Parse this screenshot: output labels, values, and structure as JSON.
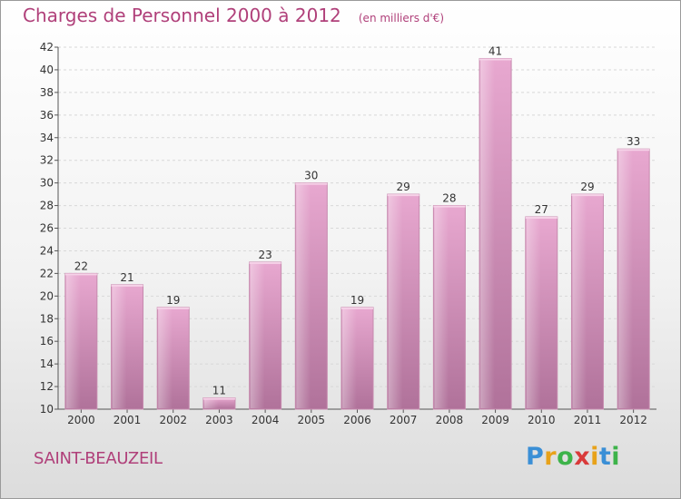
{
  "header": {
    "title": "Charges de Personnel 2000 à 2012",
    "subtitle": "(en milliers d'€)"
  },
  "footer": {
    "commune": "SAINT-BEAUZEIL",
    "brand": [
      "P",
      "r",
      "o",
      "x",
      "i",
      "t",
      "i"
    ],
    "brand_colors": [
      "#3a8fd6",
      "#e8a21a",
      "#3db34a",
      "#d93a3a",
      "#e8a21a",
      "#3a8fd6",
      "#3db34a"
    ]
  },
  "colors": {
    "bar_light": "#e8a8d0",
    "bar_dark": "#b0729a",
    "title": "#b0407a"
  },
  "chart_data": {
    "type": "bar",
    "categories": [
      "2000",
      "2001",
      "2002",
      "2003",
      "2004",
      "2005",
      "2006",
      "2007",
      "2008",
      "2009",
      "2010",
      "2011",
      "2012"
    ],
    "values": [
      22,
      21,
      19,
      11,
      23,
      30,
      19,
      29,
      28,
      41,
      27,
      29,
      33
    ],
    "title": "Charges de Personnel 2000 à 2012",
    "subtitle": "(en milliers d'€)",
    "ylim": [
      10,
      42
    ],
    "yticks": [
      10,
      12,
      14,
      16,
      18,
      20,
      22,
      24,
      26,
      28,
      30,
      32,
      34,
      36,
      38,
      40,
      42
    ],
    "grid": true,
    "legend": "none"
  }
}
